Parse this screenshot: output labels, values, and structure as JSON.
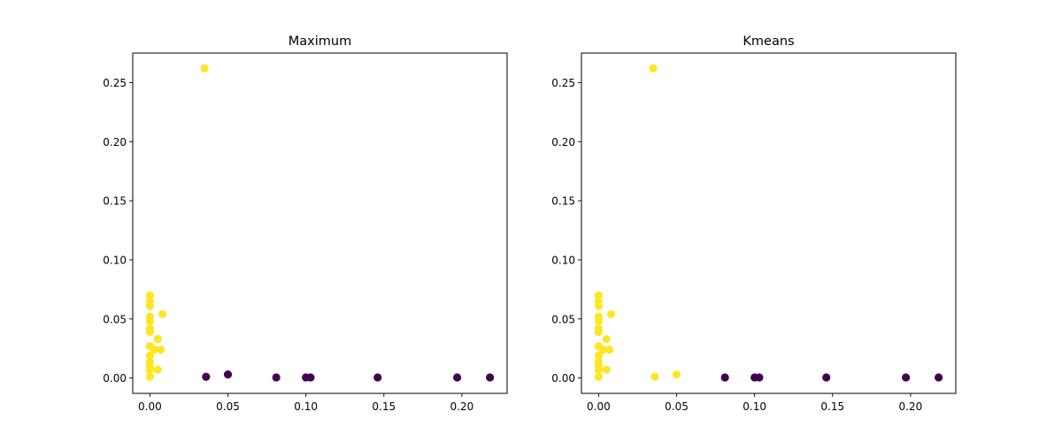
{
  "colors": {
    "cluster_0": "#440154",
    "cluster_1": "#fde725",
    "axes": "#000000",
    "background": "#ffffff"
  },
  "chart_data": [
    {
      "type": "scatter",
      "title": "Maximum",
      "xlabel": "",
      "ylabel": "",
      "xlim": [
        -0.011,
        0.229
      ],
      "ylim": [
        -0.013,
        0.275
      ],
      "xticks": [
        "0.00",
        "0.05",
        "0.10",
        "0.15",
        "0.20"
      ],
      "yticks": [
        "0.00",
        "0.05",
        "0.10",
        "0.15",
        "0.20",
        "0.25"
      ],
      "grid": false,
      "points": [
        {
          "x": 0.035,
          "y": 0.262,
          "c": 1
        },
        {
          "x": 0.0,
          "y": 0.07,
          "c": 1
        },
        {
          "x": 0.0,
          "y": 0.065,
          "c": 1
        },
        {
          "x": 0.0,
          "y": 0.061,
          "c": 1
        },
        {
          "x": 0.0,
          "y": 0.052,
          "c": 1
        },
        {
          "x": 0.0,
          "y": 0.048,
          "c": 1
        },
        {
          "x": 0.008,
          "y": 0.054,
          "c": 1
        },
        {
          "x": 0.0,
          "y": 0.042,
          "c": 1
        },
        {
          "x": 0.0,
          "y": 0.039,
          "c": 1
        },
        {
          "x": 0.005,
          "y": 0.033,
          "c": 1
        },
        {
          "x": 0.0,
          "y": 0.027,
          "c": 1
        },
        {
          "x": 0.003,
          "y": 0.024,
          "c": 1
        },
        {
          "x": 0.007,
          "y": 0.024,
          "c": 1
        },
        {
          "x": 0.0,
          "y": 0.019,
          "c": 1
        },
        {
          "x": 0.0,
          "y": 0.014,
          "c": 1
        },
        {
          "x": 0.0,
          "y": 0.01,
          "c": 1
        },
        {
          "x": 0.0,
          "y": 0.007,
          "c": 1
        },
        {
          "x": 0.005,
          "y": 0.007,
          "c": 1
        },
        {
          "x": 0.0,
          "y": 0.001,
          "c": 1
        },
        {
          "x": 0.036,
          "y": 0.001,
          "c": 0
        },
        {
          "x": 0.05,
          "y": 0.003,
          "c": 0
        },
        {
          "x": 0.081,
          "y": 0.0005,
          "c": 0
        },
        {
          "x": 0.1,
          "y": 0.0005,
          "c": 0
        },
        {
          "x": 0.103,
          "y": 0.0005,
          "c": 0
        },
        {
          "x": 0.146,
          "y": 0.0005,
          "c": 0
        },
        {
          "x": 0.197,
          "y": 0.0005,
          "c": 0
        },
        {
          "x": 0.218,
          "y": 0.0005,
          "c": 0
        }
      ]
    },
    {
      "type": "scatter",
      "title": "Kmeans",
      "xlabel": "",
      "ylabel": "",
      "xlim": [
        -0.011,
        0.229
      ],
      "ylim": [
        -0.013,
        0.275
      ],
      "xticks": [
        "0.00",
        "0.05",
        "0.10",
        "0.15",
        "0.20"
      ],
      "yticks": [
        "0.00",
        "0.05",
        "0.10",
        "0.15",
        "0.20",
        "0.25"
      ],
      "grid": false,
      "points": [
        {
          "x": 0.035,
          "y": 0.262,
          "c": 1
        },
        {
          "x": 0.0,
          "y": 0.07,
          "c": 1
        },
        {
          "x": 0.0,
          "y": 0.065,
          "c": 1
        },
        {
          "x": 0.0,
          "y": 0.061,
          "c": 1
        },
        {
          "x": 0.0,
          "y": 0.052,
          "c": 1
        },
        {
          "x": 0.0,
          "y": 0.048,
          "c": 1
        },
        {
          "x": 0.008,
          "y": 0.054,
          "c": 1
        },
        {
          "x": 0.0,
          "y": 0.042,
          "c": 1
        },
        {
          "x": 0.0,
          "y": 0.039,
          "c": 1
        },
        {
          "x": 0.005,
          "y": 0.033,
          "c": 1
        },
        {
          "x": 0.0,
          "y": 0.027,
          "c": 1
        },
        {
          "x": 0.003,
          "y": 0.024,
          "c": 1
        },
        {
          "x": 0.007,
          "y": 0.024,
          "c": 1
        },
        {
          "x": 0.0,
          "y": 0.019,
          "c": 1
        },
        {
          "x": 0.0,
          "y": 0.014,
          "c": 1
        },
        {
          "x": 0.0,
          "y": 0.01,
          "c": 1
        },
        {
          "x": 0.0,
          "y": 0.007,
          "c": 1
        },
        {
          "x": 0.005,
          "y": 0.007,
          "c": 1
        },
        {
          "x": 0.0,
          "y": 0.001,
          "c": 1
        },
        {
          "x": 0.036,
          "y": 0.001,
          "c": 1
        },
        {
          "x": 0.05,
          "y": 0.003,
          "c": 1
        },
        {
          "x": 0.081,
          "y": 0.0005,
          "c": 0
        },
        {
          "x": 0.1,
          "y": 0.0005,
          "c": 0
        },
        {
          "x": 0.103,
          "y": 0.0005,
          "c": 0
        },
        {
          "x": 0.146,
          "y": 0.0005,
          "c": 0
        },
        {
          "x": 0.197,
          "y": 0.0005,
          "c": 0
        },
        {
          "x": 0.218,
          "y": 0.0005,
          "c": 0
        }
      ]
    }
  ]
}
